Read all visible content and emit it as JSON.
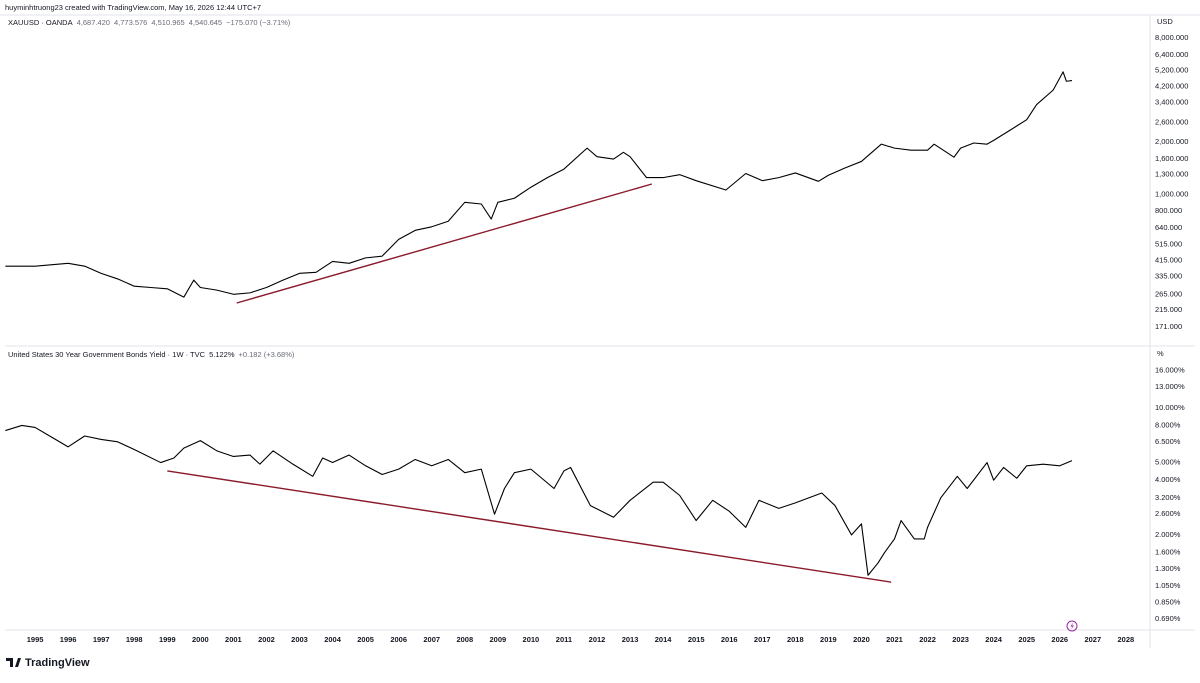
{
  "header": "huyminhtruong23 created with TradingView.com, May 16, 2026 12:44 UTC+7",
  "footer_logo": "TradingView",
  "chart_data": [
    {
      "type": "line",
      "unit": "USD",
      "log_scale": true,
      "series": [
        {
          "name": "XAUUSD · OANDA",
          "legend_values": [
            "4,687.420",
            "4,773.576",
            "4,510.965",
            "4,540.645",
            "−175.070 (−3.71%)"
          ],
          "color": "#000000",
          "x": [
            1994.1,
            1995,
            1996,
            1996.5,
            1997,
            1997.5,
            1998,
            1998.5,
            1999,
            1999.5,
            1999.8,
            2000,
            2000.5,
            2001,
            2001.5,
            2002,
            2002.5,
            2003,
            2003.5,
            2004,
            2004.5,
            2005,
            2005.5,
            2006,
            2006.5,
            2007,
            2007.5,
            2008,
            2008.5,
            2008.8,
            2009,
            2009.5,
            2010,
            2010.5,
            2011,
            2011.7,
            2012,
            2012.5,
            2012.8,
            2013,
            2013.5,
            2014,
            2014.5,
            2015,
            2015.9,
            2016.5,
            2017,
            2017.5,
            2018,
            2018.7,
            2019,
            2019.5,
            2020,
            2020.6,
            2021,
            2021.5,
            2022,
            2022.2,
            2022.8,
            2023,
            2023.4,
            2023.8,
            2024,
            2024.5,
            2025,
            2025.3,
            2025.8,
            2026.1,
            2026.2,
            2026.37
          ],
          "values": [
            385,
            385,
            400,
            385,
            350,
            325,
            295,
            290,
            285,
            255,
            320,
            290,
            280,
            265,
            270,
            290,
            320,
            350,
            355,
            410,
            400,
            430,
            440,
            550,
            620,
            650,
            700,
            900,
            880,
            720,
            900,
            950,
            1100,
            1250,
            1400,
            1850,
            1650,
            1600,
            1750,
            1650,
            1250,
            1250,
            1300,
            1200,
            1060,
            1320,
            1200,
            1250,
            1330,
            1190,
            1290,
            1420,
            1550,
            1950,
            1850,
            1800,
            1800,
            1950,
            1640,
            1850,
            1980,
            1950,
            2050,
            2350,
            2700,
            3300,
            4000,
            5100,
            4500,
            4540
          ]
        }
      ],
      "trendline": {
        "color": "#8b1a2b",
        "x": [
          2001.1,
          2013.66
        ],
        "values": [
          236,
          1148
        ]
      },
      "xlim": [
        1994.09,
        2028.73
      ],
      "ylim": [
        135,
        10860
      ],
      "yticks": [
        {
          "value": 8000,
          "label": "8,000.000"
        },
        {
          "value": 6400,
          "label": "6,400.000"
        },
        {
          "value": 5200,
          "label": "5,200.000"
        },
        {
          "value": 4200,
          "label": "4,200.000"
        },
        {
          "value": 3400,
          "label": "3,400.000"
        },
        {
          "value": 2600,
          "label": "2,600.000"
        },
        {
          "value": 2000,
          "label": "2,000.000"
        },
        {
          "value": 1600,
          "label": "1,600.000"
        },
        {
          "value": 1300,
          "label": "1,300.000"
        },
        {
          "value": 1000,
          "label": "1,000.000"
        },
        {
          "value": 800,
          "label": "800.000"
        },
        {
          "value": 640,
          "label": "640.000"
        },
        {
          "value": 515,
          "label": "515.000"
        },
        {
          "value": 415,
          "label": "415.000"
        },
        {
          "value": 335,
          "label": "335.000"
        },
        {
          "value": 265,
          "label": "265.000"
        },
        {
          "value": 215,
          "label": "215.000"
        },
        {
          "value": 171,
          "label": "171.000"
        }
      ]
    },
    {
      "type": "line",
      "unit": "%",
      "log_scale": true,
      "series": [
        {
          "name": "United States 30 Year Government Bonds Yield · 1W · TVC",
          "legend_values": [
            "5.122%",
            "+0.182 (+3.68%)"
          ],
          "color": "#000000",
          "x": [
            1994.1,
            1994.6,
            1995,
            1995.5,
            1996,
            1996.5,
            1997,
            1997.5,
            1998,
            1998.8,
            1999.2,
            1999.5,
            2000,
            2000.5,
            2001,
            2001.5,
            2001.8,
            2002.2,
            2002.8,
            2003.4,
            2003.7,
            2004,
            2004.5,
            2005,
            2005.5,
            2006,
            2006.5,
            2007,
            2007.5,
            2008,
            2008.5,
            2008.9,
            2009.2,
            2009.5,
            2010,
            2010.7,
            2011,
            2011.2,
            2011.8,
            2012.5,
            2013,
            2013.7,
            2014,
            2014.5,
            2015,
            2015.5,
            2016,
            2016.5,
            2016.9,
            2017.5,
            2018,
            2018.8,
            2019.2,
            2019.7,
            2020,
            2020.2,
            2020.5,
            2020.7,
            2021,
            2021.2,
            2021.6,
            2021.9,
            2022,
            2022.4,
            2022.9,
            2023.2,
            2023.8,
            2024,
            2024.3,
            2024.7,
            2025,
            2025.5,
            2026,
            2026.37
          ],
          "values": [
            7.5,
            8.0,
            7.8,
            6.9,
            6.1,
            7.0,
            6.7,
            6.5,
            5.9,
            5.0,
            5.3,
            6.0,
            6.6,
            5.8,
            5.4,
            5.5,
            4.9,
            5.8,
            4.9,
            4.2,
            5.3,
            5.0,
            5.5,
            4.8,
            4.3,
            4.6,
            5.2,
            4.8,
            5.2,
            4.4,
            4.6,
            2.6,
            3.6,
            4.4,
            4.6,
            3.6,
            4.5,
            4.7,
            2.9,
            2.5,
            3.1,
            3.9,
            3.9,
            3.3,
            2.4,
            3.1,
            2.7,
            2.2,
            3.1,
            2.8,
            3.0,
            3.4,
            2.9,
            2.0,
            2.3,
            1.2,
            1.4,
            1.6,
            1.9,
            2.4,
            1.9,
            1.9,
            2.2,
            3.2,
            4.2,
            3.6,
            5.0,
            4.0,
            4.7,
            4.1,
            4.8,
            4.9,
            4.8,
            5.122
          ]
        }
      ],
      "trendline": {
        "color": "#8b1a2b",
        "x": [
          1999.0,
          2020.9
        ],
        "values": [
          4.5,
          1.1
        ]
      },
      "xlim": [
        1994.09,
        2028.73
      ],
      "xticks": [
        1995,
        1996,
        1997,
        1998,
        1999,
        2000,
        2001,
        2002,
        2003,
        2004,
        2005,
        2006,
        2007,
        2008,
        2009,
        2010,
        2011,
        2012,
        2013,
        2014,
        2015,
        2016,
        2017,
        2018,
        2019,
        2020,
        2021,
        2022,
        2023,
        2024,
        2025,
        2026,
        2027,
        2028
      ],
      "ylim": [
        0.6,
        21.6
      ],
      "yticks": [
        {
          "value": 16,
          "label": "16.000%"
        },
        {
          "value": 13,
          "label": "13.000%"
        },
        {
          "value": 10,
          "label": "10.000%"
        },
        {
          "value": 8,
          "label": "8.000%"
        },
        {
          "value": 6.5,
          "label": "6.500%"
        },
        {
          "value": 5,
          "label": "5.000%"
        },
        {
          "value": 4,
          "label": "4.000%"
        },
        {
          "value": 3.2,
          "label": "3.200%"
        },
        {
          "value": 2.6,
          "label": "2.600%"
        },
        {
          "value": 2,
          "label": "2.000%"
        },
        {
          "value": 1.6,
          "label": "1.600%"
        },
        {
          "value": 1.3,
          "label": "1.300%"
        },
        {
          "value": 1.05,
          "label": "1.050%"
        },
        {
          "value": 0.85,
          "label": "0.850%"
        },
        {
          "value": 0.69,
          "label": "0.690%"
        }
      ]
    }
  ]
}
